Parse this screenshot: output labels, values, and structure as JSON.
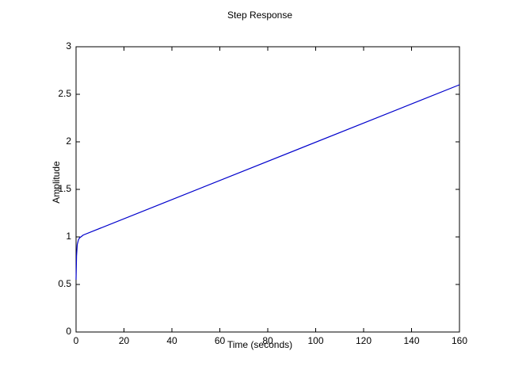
{
  "chart_data": {
    "type": "line",
    "title": "Step Response",
    "x_label": "Time (seconds)",
    "y_label": "Amplitude",
    "x": [
      0,
      0.2,
      0.5,
      1,
      1.5,
      2,
      3,
      160
    ],
    "series": [
      {
        "name": "Step response",
        "color": "#0000cc",
        "values": [
          0.55,
          0.8,
          0.92,
          0.97,
          0.99,
          1.0,
          1.02,
          2.6
        ]
      }
    ],
    "xlim": [
      0,
      160
    ],
    "xticks": [
      0,
      20,
      40,
      60,
      80,
      100,
      120,
      140,
      160
    ],
    "ylim": [
      0,
      3
    ],
    "yticks": [
      0,
      0.5,
      1,
      1.5,
      2,
      2.5,
      3
    ]
  }
}
